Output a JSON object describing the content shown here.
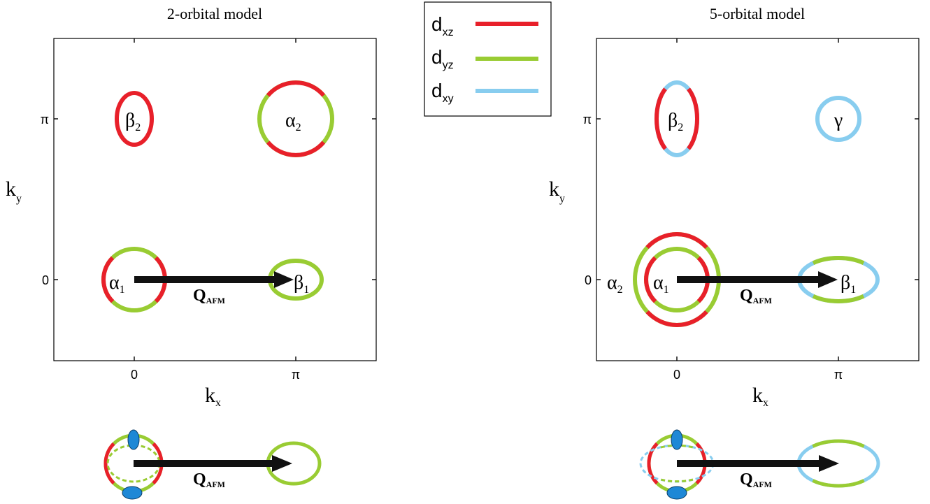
{
  "colors": {
    "dxz": "#e8202a",
    "dyz": "#99cc33",
    "dxy": "#88cdef",
    "arrow": "#111111",
    "pocket": "#1e88d6"
  },
  "legend": {
    "items": [
      {
        "label": "d",
        "sub": "xz",
        "color": "#e8202a"
      },
      {
        "label": "d",
        "sub": "yz",
        "color": "#99cc33"
      },
      {
        "label": "d",
        "sub": "xy",
        "color": "#88cdef"
      }
    ]
  },
  "left_panel": {
    "title": "2-orbital model",
    "xlabel": "k",
    "xlabel_sub": "x",
    "ylabel": "k",
    "ylabel_sub": "y",
    "xticks": [
      "0",
      "π"
    ],
    "yticks": [
      "π",
      "0"
    ],
    "labels": {
      "beta2": {
        "main": "β",
        "sub": "2"
      },
      "alpha2": {
        "main": "α",
        "sub": "2"
      },
      "alpha1": {
        "main": "α",
        "sub": "1"
      },
      "beta1": {
        "main": "β",
        "sub": "1"
      }
    },
    "q_label": "Q",
    "q_sub": "AFM"
  },
  "right_panel": {
    "title": "5-orbital model",
    "xlabel": "k",
    "xlabel_sub": "x",
    "ylabel": "k",
    "ylabel_sub": "y",
    "xticks": [
      "0",
      "π"
    ],
    "yticks": [
      "π",
      "0"
    ],
    "labels": {
      "beta2": {
        "main": "β",
        "sub": "2"
      },
      "gamma": {
        "main": "γ",
        "sub": ""
      },
      "alpha2": {
        "main": "α",
        "sub": "2"
      },
      "alpha1": {
        "main": "α",
        "sub": "1"
      },
      "beta1": {
        "main": "β",
        "sub": "1"
      }
    },
    "q_label": "Q",
    "q_sub": "AFM"
  },
  "bottom_left": {
    "q_label": "Q",
    "q_sub": "AFM"
  },
  "bottom_right": {
    "q_label": "Q",
    "q_sub": "AFM"
  }
}
